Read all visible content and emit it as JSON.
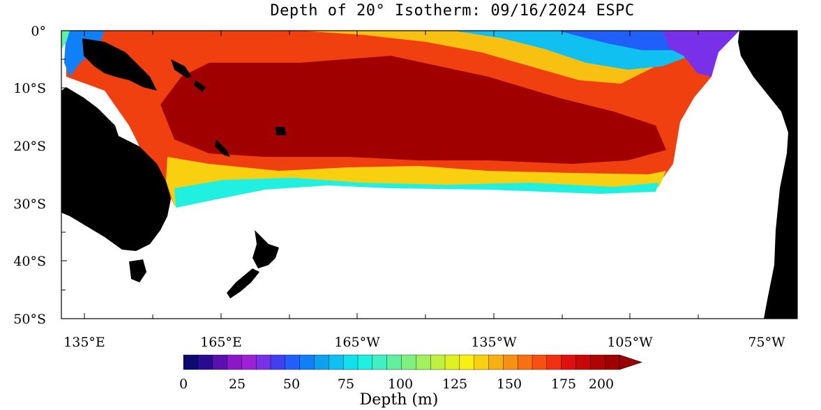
{
  "title": "Depth of 20° Isotherm: 09/16/2024 ESPC",
  "map": {
    "lat_labels": [
      "0°",
      "10°S",
      "20°S",
      "30°S",
      "40°S",
      "50°S"
    ],
    "lon_labels": [
      "135°E",
      "165°E",
      "165°W",
      "135°W",
      "105°W",
      "75°W"
    ]
  },
  "colorbar": {
    "ticks": [
      "0",
      "25",
      "50",
      "75",
      "100",
      "125",
      "150",
      "175",
      "200"
    ],
    "label": "Depth (m)",
    "colors": [
      "#0a0a70",
      "#2a0a90",
      "#5a10b0",
      "#8a18c8",
      "#a020d8",
      "#7830e8",
      "#4040f0",
      "#2060f8",
      "#1080f8",
      "#10a0f0",
      "#10c0f0",
      "#10e0f0",
      "#20f0e0",
      "#40f0c0",
      "#60f0a0",
      "#80f080",
      "#a0f060",
      "#c0f040",
      "#e0f020",
      "#f8f010",
      "#f8d010",
      "#f8b010",
      "#f89010",
      "#f87010",
      "#f85010",
      "#f03010",
      "#e01010",
      "#c80808",
      "#b00404",
      "#a00000"
    ],
    "overflow_color": "#9c0000"
  }
}
